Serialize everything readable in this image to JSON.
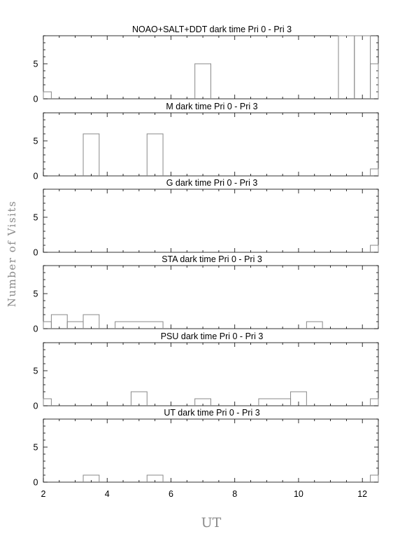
{
  "figure": {
    "ylabel": "Number of Visits",
    "xlabel": "UT"
  },
  "chart_data": [
    {
      "type": "histogram",
      "title": "NOAO+SALT+DDT dark time Pri 0 - Pri 3",
      "xlim": [
        2,
        12.5
      ],
      "ylim": [
        0,
        9
      ],
      "yticks": [
        0,
        5
      ],
      "bin_edges": [
        2,
        2.25,
        6.75,
        7.25,
        11.25,
        11.75,
        12.25,
        12.5
      ],
      "counts": [
        1,
        0,
        5,
        0,
        9,
        9,
        5
      ]
    },
    {
      "type": "histogram",
      "title": "M    dark time Pri 0 - Pri 3",
      "xlim": [
        2,
        12.5
      ],
      "ylim": [
        0,
        9
      ],
      "yticks": [
        0,
        5
      ],
      "bin_edges": [
        2,
        3.25,
        3.75,
        5.25,
        5.75,
        12.25,
        12.5
      ],
      "counts": [
        0,
        6,
        0,
        6,
        0,
        1
      ]
    },
    {
      "type": "histogram",
      "title": "G    dark time Pri 0 - Pri 3",
      "xlim": [
        2,
        12.5
      ],
      "ylim": [
        0,
        9
      ],
      "yticks": [
        0,
        5
      ],
      "bin_edges": [
        2,
        12.25,
        12.5
      ],
      "counts": [
        0,
        1
      ]
    },
    {
      "type": "histogram",
      "title": "STA    dark time Pri 0 - Pri 3",
      "xlim": [
        2,
        12.5
      ],
      "ylim": [
        0,
        9
      ],
      "yticks": [
        0,
        5
      ],
      "bin_edges": [
        2,
        2.25,
        2.75,
        3.25,
        3.75,
        4.25,
        5.75,
        10.25,
        10.75,
        12.5
      ],
      "counts": [
        1,
        2,
        1,
        2,
        0,
        1,
        0,
        1,
        0
      ]
    },
    {
      "type": "histogram",
      "title": "PSU    dark time Pri 0 - Pri 3",
      "xlim": [
        2,
        12.5
      ],
      "ylim": [
        0,
        9
      ],
      "yticks": [
        0,
        5
      ],
      "bin_edges": [
        2,
        2.25,
        4.75,
        5.25,
        6.75,
        7.25,
        8.75,
        9.75,
        10.25,
        12.25,
        12.5
      ],
      "counts": [
        1,
        0,
        2,
        0,
        1,
        0,
        1,
        2,
        0,
        1
      ]
    },
    {
      "type": "histogram",
      "title": "UT    dark time Pri 0 - Pri 3",
      "xlim": [
        2,
        12.5
      ],
      "ylim": [
        0,
        9
      ],
      "yticks": [
        0,
        5
      ],
      "xticks": [
        2,
        4,
        6,
        8,
        10,
        12
      ],
      "bin_edges": [
        2,
        3.25,
        3.75,
        5.25,
        5.75,
        12.25,
        12.5
      ],
      "counts": [
        0,
        1,
        0,
        1,
        0,
        1
      ]
    }
  ]
}
